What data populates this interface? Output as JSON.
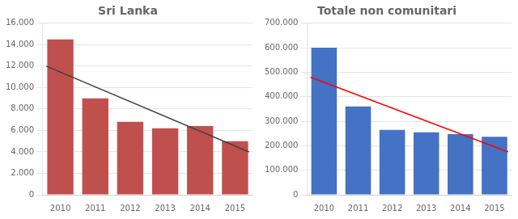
{
  "chart_data": [
    {
      "type": "bar",
      "title": "Sri Lanka",
      "categories": [
        "2010",
        "2011",
        "2012",
        "2013",
        "2014",
        "2015"
      ],
      "series": [
        {
          "type": "bar",
          "color": "#c0504d",
          "values": [
            14500,
            9000,
            6800,
            6200,
            6400,
            5000
          ]
        },
        {
          "type": "line",
          "color": "#404040",
          "x": [
            -0.4,
            5.4
          ],
          "values": [
            12000,
            4000
          ]
        }
      ],
      "xlim": [
        -0.5,
        5.5
      ],
      "ylim": [
        0,
        16000
      ],
      "yticks": [
        0,
        {
          "value": 2000,
          "label": "2.000"
        },
        {
          "value": 4000,
          "label": "4.000"
        },
        {
          "value": 6000,
          "label": "6.000"
        },
        {
          "value": 8000,
          "label": "8.000"
        },
        {
          "value": 10000,
          "label": "10.000"
        },
        {
          "value": 12000,
          "label": "12.000"
        },
        {
          "value": 14000,
          "label": "14.000"
        },
        {
          "value": 16000,
          "label": "16.000"
        }
      ],
      "grid": true
    },
    {
      "type": "bar",
      "title": "Totale non comunitari",
      "categories": [
        "2010",
        "2011",
        "2012",
        "2013",
        "2014",
        "2015"
      ],
      "series": [
        {
          "type": "bar",
          "color": "#4472c4",
          "values": [
            600000,
            360000,
            265000,
            255000,
            247000,
            237000
          ]
        },
        {
          "type": "line",
          "color": "#ff0000",
          "x": [
            -0.4,
            5.4
          ],
          "values": [
            480000,
            175000
          ]
        }
      ],
      "xlim": [
        -0.5,
        5.5
      ],
      "ylim": [
        0,
        700000
      ],
      "yticks": [
        0,
        {
          "value": 100000,
          "label": "100.000"
        },
        {
          "value": 200000,
          "label": "200.000"
        },
        {
          "value": 300000,
          "label": "300.000"
        },
        {
          "value": 400000,
          "label": "400.000"
        },
        {
          "value": 500000,
          "label": "500.000"
        },
        {
          "value": 600000,
          "label": "600.000"
        },
        {
          "value": 700000,
          "label": "700.000"
        }
      ],
      "grid": true
    }
  ]
}
